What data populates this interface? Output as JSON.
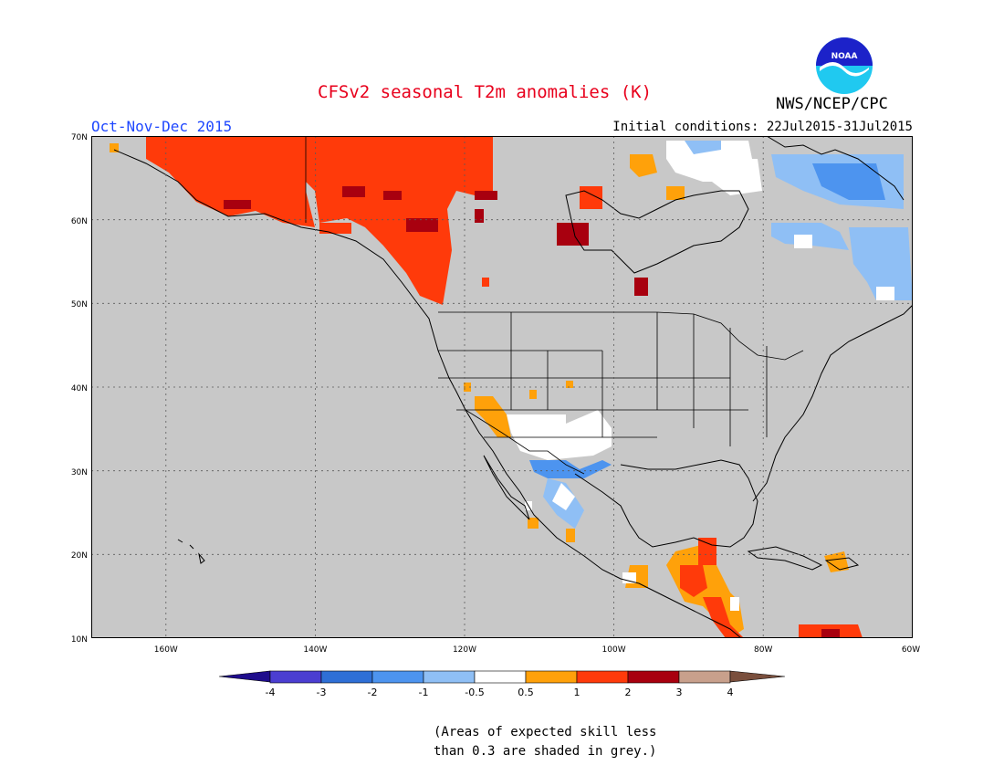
{
  "header": {
    "title": "CFSv2 seasonal T2m anomalies (K)",
    "season": "Oct-Nov-Dec 2015",
    "initial_conditions": "Initial conditions: 22Jul2015-31Jul2015",
    "organization": "NWS/NCEP/CPC",
    "logo_text": "NOAA"
  },
  "map": {
    "background_color": "#c8c8c8",
    "lon_labels": [
      "160W",
      "140W",
      "120W",
      "100W",
      "80W",
      "60W"
    ],
    "lat_labels": [
      "70N",
      "60N",
      "50N",
      "40N",
      "30N",
      "20N",
      "10N"
    ]
  },
  "legend": {
    "tick_labels": [
      "-4",
      "-3",
      "-2",
      "-1",
      "-0.5",
      "0.5",
      "1",
      "2",
      "3",
      "4"
    ],
    "colors": [
      "#1f0d8c",
      "#4b3ed1",
      "#2e6fd6",
      "#4d94ef",
      "#8fbff5",
      "#ffffff",
      "#ffa10a",
      "#ff3a0a",
      "#a8000f",
      "#c8a08c",
      "#7a4f3d"
    ]
  },
  "footnote": {
    "line1": "(Areas of expected skill less",
    "line2": "than 0.3 are shaded in grey.)"
  }
}
